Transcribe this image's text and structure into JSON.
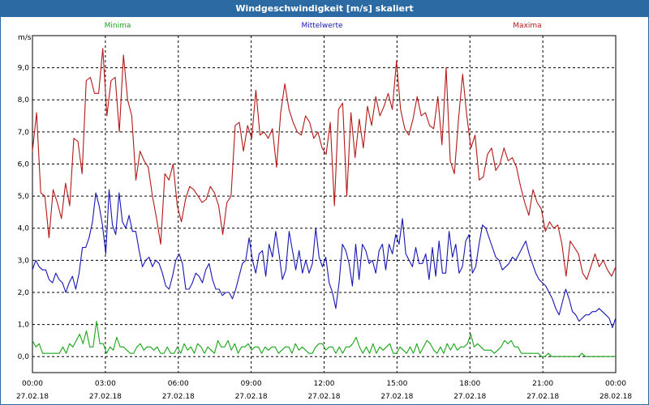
{
  "window": {
    "title": "Windgeschwindigkeit [m/s] skaliert"
  },
  "colors": {
    "minima": "#1aa51a",
    "mittelwerte": "#1616b4",
    "maxima": "#b41818",
    "titlebar": "#2b6aa3"
  },
  "chart_data": {
    "type": "line",
    "ylabel": "m/s",
    "ylim": [
      -0.5,
      10
    ],
    "xlim": [
      0,
      24
    ],
    "yticks": [
      "0,0",
      "1,0",
      "2,0",
      "3,0",
      "4,0",
      "5,0",
      "6,0",
      "7,0",
      "8,0",
      "9,0"
    ],
    "xticks": [
      {
        "time": "00:00",
        "date": "27.02.18"
      },
      {
        "time": "03:00",
        "date": "27.02.18"
      },
      {
        "time": "06:00",
        "date": "27.02.18"
      },
      {
        "time": "09:00",
        "date": "27.02.18"
      },
      {
        "time": "12:00",
        "date": "27.02.18"
      },
      {
        "time": "15:00",
        "date": "27.02.18"
      },
      {
        "time": "18:00",
        "date": "27.02.18"
      },
      {
        "time": "21:00",
        "date": "27.02.18"
      },
      {
        "time": "00:00",
        "date": "28.02.18"
      }
    ],
    "grid": true,
    "legend": "top",
    "series": [
      {
        "name": "Minima",
        "color": "#1aa51a",
        "values": [
          0.5,
          0.3,
          0.4,
          0.1,
          0.1,
          0.1,
          0.1,
          0.1,
          0.1,
          0.3,
          0.1,
          0.4,
          0.3,
          0.5,
          0.7,
          0.4,
          0.8,
          0.3,
          0.3,
          1.1,
          0.4,
          0.4,
          0.1,
          0.3,
          0.2,
          0.6,
          0.3,
          0.3,
          0.2,
          0.1,
          0.1,
          0.3,
          0.4,
          0.2,
          0.3,
          0.3,
          0.2,
          0.3,
          0.1,
          0.1,
          0.3,
          0.1,
          0.1,
          0.3,
          0.1,
          0.4,
          0.2,
          0.3,
          0.1,
          0.4,
          0.3,
          0.1,
          0.3,
          0.2,
          0.1,
          0.5,
          0.3,
          0.3,
          0.5,
          0.2,
          0.4,
          0.1,
          0.3,
          0.3,
          0.4,
          0.2,
          0.3,
          0.3,
          0.1,
          0.3,
          0.2,
          0.3,
          0.3,
          0.1,
          0.2,
          0.3,
          0.3,
          0.1,
          0.4,
          0.2,
          0.3,
          0.2,
          0.1,
          0.1,
          0.3,
          0.4,
          0.4,
          0.2,
          0.3,
          0.3,
          0.1,
          0.3,
          0.1,
          0.3,
          0.3,
          0.4,
          0.6,
          0.3,
          0.1,
          0.3,
          0.1,
          0.4,
          0.1,
          0.3,
          0.2,
          0.3,
          0.4,
          0.1,
          0.1,
          0.3,
          0.2,
          0.1,
          0.3,
          0.1,
          0.4,
          0.1,
          0.3,
          0.5,
          0.4,
          0.2,
          0.1,
          0.3,
          0.1,
          0.4,
          0.2,
          0.4,
          0.2,
          0.3,
          0.3,
          0.4,
          0.7,
          0.3,
          0.4,
          0.3,
          0.2,
          0.2,
          0.2,
          0.1,
          0.2,
          0.3,
          0.5,
          0.4,
          0.5,
          0.3,
          0.3,
          0.1,
          0.1,
          0.1,
          0.1,
          0.1,
          0.1,
          0.0,
          0.0,
          0.1,
          0.0,
          0.0,
          0.0,
          0.0,
          0.0,
          0.0,
          0.0,
          0.0,
          0.0,
          0.1,
          0.0,
          0.0,
          0.0,
          0.0,
          0.0,
          0.0,
          0.0,
          0.0,
          0.0,
          0.0
        ]
      },
      {
        "name": "Mittelwerte",
        "color": "#1616b4",
        "values": [
          2.7,
          3.0,
          2.8,
          2.7,
          2.7,
          2.4,
          2.3,
          2.6,
          2.4,
          2.3,
          2.0,
          2.3,
          2.5,
          2.1,
          2.6,
          3.4,
          3.4,
          3.7,
          4.2,
          5.1,
          4.7,
          4.1,
          3.2,
          5.2,
          4.1,
          3.8,
          5.1,
          4.2,
          4.0,
          4.4,
          3.9,
          3.9,
          3.3,
          2.8,
          3.0,
          3.1,
          2.8,
          3.0,
          2.9,
          2.6,
          2.2,
          2.1,
          2.5,
          3.0,
          3.2,
          2.9,
          2.1,
          2.1,
          2.3,
          2.6,
          2.5,
          2.3,
          2.7,
          2.9,
          2.4,
          2.1,
          2.1,
          1.9,
          2.0,
          2.0,
          1.8,
          2.1,
          2.5,
          2.9,
          3.0,
          3.7,
          3.0,
          2.6,
          3.2,
          3.3,
          2.5,
          3.5,
          3.1,
          3.9,
          3.2,
          2.4,
          2.7,
          3.9,
          3.3,
          2.7,
          3.3,
          2.6,
          3.0,
          2.6,
          2.9,
          4.0,
          3.1,
          2.8,
          3.1,
          2.3,
          2.0,
          1.5,
          2.3,
          3.5,
          3.3,
          2.9,
          2.2,
          3.5,
          2.4,
          3.5,
          3.3,
          2.9,
          3.0,
          2.6,
          3.3,
          3.5,
          2.7,
          3.5,
          3.2,
          3.8,
          3.5,
          4.3,
          3.2,
          3.0,
          2.8,
          3.4,
          2.9,
          2.9,
          3.2,
          2.4,
          3.4,
          2.5,
          3.6,
          2.6,
          2.6,
          3.9,
          3.1,
          3.5,
          2.6,
          2.8,
          3.6,
          3.8,
          2.6,
          2.8,
          3.5,
          4.1,
          4.0,
          3.7,
          3.4,
          3.1,
          3.0,
          2.7,
          2.8,
          2.9,
          3.1,
          3.0,
          3.2,
          3.4,
          3.6,
          3.2,
          2.9,
          2.6,
          2.4,
          2.3,
          2.2,
          2.0,
          1.8,
          1.5,
          1.3,
          1.7,
          2.1,
          1.8,
          1.4,
          1.3,
          1.1,
          1.2,
          1.3,
          1.3,
          1.4,
          1.4,
          1.5,
          1.4,
          1.3,
          1.2,
          0.9,
          1.2
        ]
      },
      {
        "name": "Maxima",
        "color": "#b41818",
        "values": [
          6.4,
          7.6,
          5.1,
          5.0,
          3.7,
          5.2,
          4.8,
          4.3,
          5.4,
          4.7,
          6.8,
          6.7,
          5.7,
          8.6,
          8.7,
          8.2,
          8.2,
          9.6,
          7.5,
          8.6,
          8.7,
          7.0,
          9.4,
          8.0,
          7.5,
          5.5,
          6.4,
          6.1,
          5.9,
          5.0,
          4.3,
          3.5,
          5.7,
          5.5,
          6.0,
          4.7,
          4.2,
          4.9,
          5.3,
          5.2,
          5.0,
          4.8,
          4.9,
          5.3,
          5.1,
          4.7,
          3.8,
          4.8,
          5.0,
          7.2,
          7.3,
          6.4,
          7.2,
          6.8,
          8.3,
          6.9,
          7.0,
          6.8,
          7.1,
          5.9,
          7.6,
          8.5,
          7.7,
          7.3,
          7.0,
          6.9,
          7.5,
          7.3,
          6.8,
          7.0,
          6.5,
          6.3,
          7.3,
          4.7,
          7.7,
          7.9,
          5.0,
          7.6,
          6.2,
          7.4,
          6.5,
          7.8,
          7.2,
          8.1,
          7.5,
          7.8,
          8.2,
          7.7,
          9.2,
          7.7,
          7.1,
          6.9,
          7.4,
          8.1,
          7.5,
          7.6,
          7.2,
          7.1,
          8.1,
          6.6,
          9.0,
          6.1,
          5.7,
          7.4,
          8.8,
          7.5,
          6.5,
          6.9,
          5.5,
          5.6,
          6.3,
          6.5,
          5.8,
          6.0,
          6.5,
          6.1,
          6.2,
          5.9,
          5.3,
          4.8,
          4.4,
          5.2,
          4.8,
          4.6,
          3.9,
          4.2,
          4.0,
          4.1,
          3.5,
          2.5,
          3.6,
          3.4,
          3.2,
          2.6,
          2.4,
          2.8,
          3.2,
          2.8,
          3.0,
          2.7,
          2.5,
          2.8
        ]
      }
    ]
  }
}
